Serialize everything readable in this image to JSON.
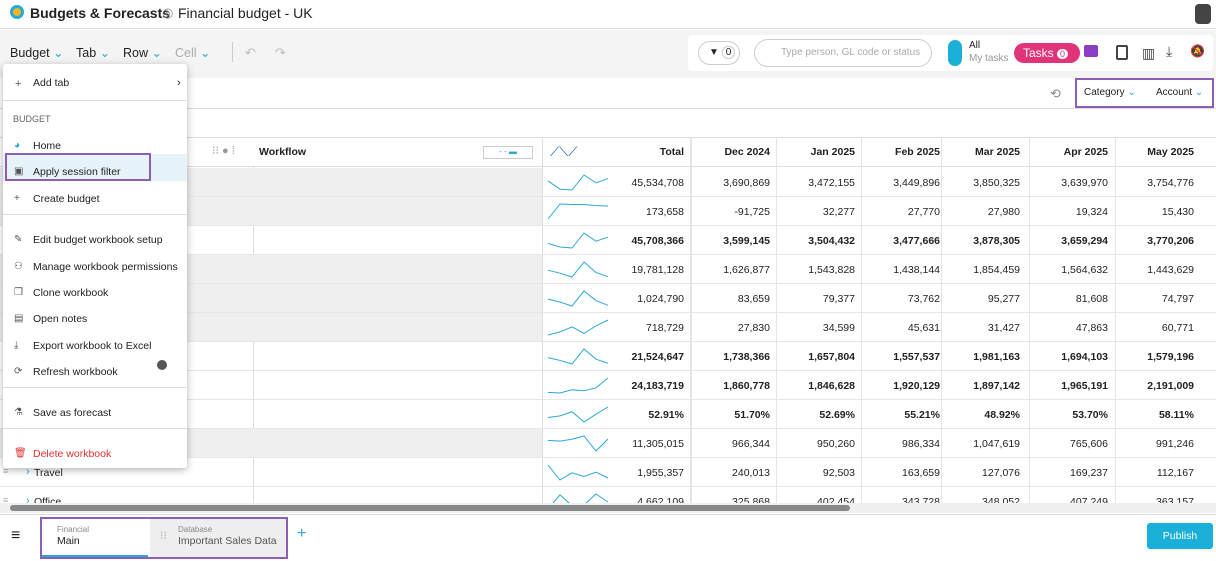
{
  "header": {
    "app_title": "Budgets & Forecasts",
    "workbook_title": "Financial budget - UK"
  },
  "toolbar": {
    "menus": [
      "Budget",
      "Tab",
      "Row",
      "Cell"
    ],
    "filter_count": "0",
    "search_placeholder": "Type person, GL code or status",
    "toggle_on": "All",
    "toggle_off": "My tasks",
    "tasks_label": "Tasks",
    "tasks_count": "0"
  },
  "view_controls": {
    "category": "Category",
    "account": "Account"
  },
  "menu": {
    "add_tab": "Add tab",
    "section": "BUDGET",
    "items": [
      "Home",
      "Apply session filter",
      "Create budget",
      "Edit budget workbook setup",
      "Manage workbook permissions",
      "Clone workbook",
      "Open notes",
      "Export workbook to Excel",
      "Refresh workbook",
      "Save as forecast",
      "Delete workbook"
    ]
  },
  "table": {
    "workflow_header": "Workflow",
    "columns": [
      "Total",
      "Dec 2024",
      "Jan 2025",
      "Feb 2025",
      "Mar 2025",
      "Apr 2025",
      "May 2025"
    ],
    "rows": [
      {
        "label": null,
        "bold": false,
        "cells": [
          "45,534,708",
          "3,690,869",
          "3,472,155",
          "3,449,896",
          "3,850,325",
          "3,639,970",
          "3,754,776"
        ]
      },
      {
        "label": null,
        "bold": false,
        "cells": [
          "173,658",
          "-91,725",
          "32,277",
          "27,770",
          "27,980",
          "19,324",
          "15,430"
        ]
      },
      {
        "label": null,
        "bold": true,
        "cells": [
          "45,708,366",
          "3,599,145",
          "3,504,432",
          "3,477,666",
          "3,878,305",
          "3,659,294",
          "3,770,206"
        ]
      },
      {
        "label": null,
        "bold": false,
        "cells": [
          "19,781,128",
          "1,626,877",
          "1,543,828",
          "1,438,144",
          "1,854,459",
          "1,564,632",
          "1,443,629"
        ]
      },
      {
        "label": null,
        "bold": false,
        "cells": [
          "1,024,790",
          "83,659",
          "79,377",
          "73,762",
          "95,277",
          "81,608",
          "74,797"
        ]
      },
      {
        "label": null,
        "bold": false,
        "cells": [
          "718,729",
          "27,830",
          "34,599",
          "45,631",
          "31,427",
          "47,863",
          "60,771"
        ]
      },
      {
        "label": null,
        "bold": true,
        "cells": [
          "21,524,647",
          "1,738,366",
          "1,657,804",
          "1,557,537",
          "1,981,163",
          "1,694,103",
          "1,579,196"
        ]
      },
      {
        "label": null,
        "bold": true,
        "cells": [
          "24,183,719",
          "1,860,778",
          "1,846,628",
          "1,920,129",
          "1,897,142",
          "1,965,191",
          "2,191,009"
        ]
      },
      {
        "label": null,
        "bold": true,
        "cells": [
          "52.91%",
          "51.70%",
          "52.69%",
          "55.21%",
          "48.92%",
          "53.70%",
          "58.11%"
        ]
      },
      {
        "label": null,
        "bold": false,
        "cells": [
          "11,305,015",
          "966,344",
          "950,260",
          "986,334",
          "1,047,619",
          "765,606",
          "991,246"
        ]
      },
      {
        "label": "Travel",
        "bold": false,
        "cells": [
          "1,955,357",
          "240,013",
          "92,503",
          "163,659",
          "127,076",
          "169,237",
          "112,167"
        ]
      },
      {
        "label": "Office",
        "bold": false,
        "cells": [
          "4,662,109",
          "325,868",
          "402,454",
          "343,728",
          "348,052",
          "407,249",
          "363,157"
        ]
      }
    ]
  },
  "footer": {
    "tabs": [
      {
        "group": "Financial",
        "name": "Main"
      },
      {
        "group": "Database",
        "name": "Important Sales Data"
      }
    ],
    "publish": "Publish"
  }
}
